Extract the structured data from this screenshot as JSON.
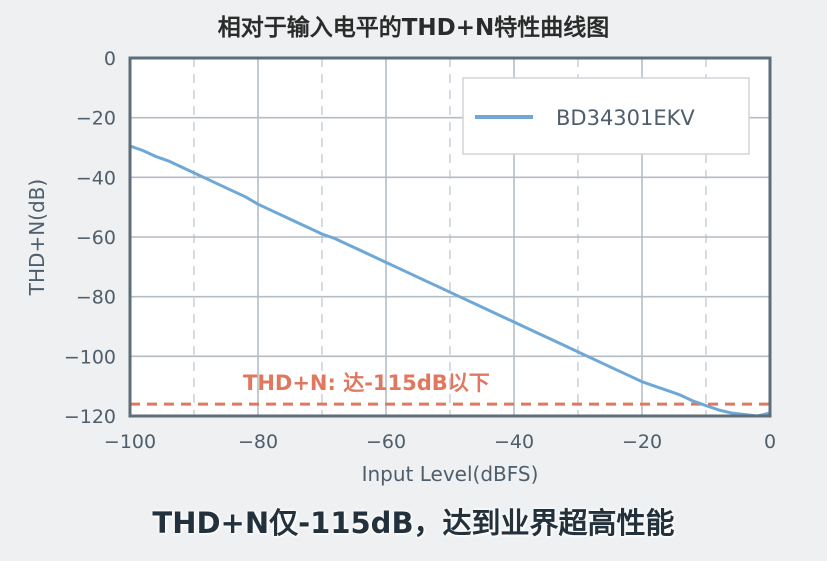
{
  "page": {
    "title": "相对于输入电平的THD+N特性曲线图",
    "footer": "THD+N仅-115dB，达到业界超高性能"
  },
  "chart_data": {
    "type": "line",
    "title": "相对于输入电平的THD+N特性曲线图",
    "xlabel": "Input Level(dBFS)",
    "ylabel": "THD+N(dB)",
    "xlim": [
      -100,
      0
    ],
    "ylim": [
      -120,
      0
    ],
    "xticks": [
      -100,
      -80,
      -60,
      -40,
      -20,
      0
    ],
    "xtick_labels": [
      "−100",
      "−80",
      "−60",
      "−40",
      "−20",
      "0"
    ],
    "yticks": [
      0,
      -20,
      -40,
      -60,
      -80,
      -100,
      -120
    ],
    "ytick_labels": [
      "0",
      "−20",
      "−40",
      "−60",
      "−80",
      "−100",
      "−120"
    ],
    "grid": true,
    "legend_position": "top-right",
    "series": [
      {
        "name": "BD34301EKV",
        "color": "#6fa8d6",
        "x": [
          -100,
          -98,
          -96,
          -94,
          -92,
          -90,
          -88,
          -86,
          -84,
          -82,
          -80,
          -78,
          -76,
          -74,
          -72,
          -70,
          -68,
          -66,
          -64,
          -62,
          -60,
          -58,
          -56,
          -54,
          -52,
          -50,
          -48,
          -46,
          -44,
          -42,
          -40,
          -38,
          -36,
          -34,
          -32,
          -30,
          -28,
          -26,
          -24,
          -22,
          -20,
          -18,
          -16,
          -14,
          -12,
          -10,
          -8,
          -6,
          -4,
          -2,
          0
        ],
        "y": [
          -29.5,
          -31,
          -33,
          -34.5,
          -36.5,
          -38.5,
          -40.5,
          -42.5,
          -44.5,
          -46.5,
          -49,
          -51,
          -53,
          -55,
          -57,
          -59,
          -60.5,
          -62.5,
          -64.5,
          -66.5,
          -68.5,
          -70.5,
          -72.5,
          -74.5,
          -76.5,
          -78.5,
          -80.5,
          -82.5,
          -84.5,
          -86.5,
          -88.5,
          -90.5,
          -92.5,
          -94.5,
          -96.5,
          -98.5,
          -100.5,
          -102.5,
          -104.5,
          -106.5,
          -108.5,
          -110,
          -111.5,
          -113,
          -115,
          -116.5,
          -118,
          -119,
          -119.5,
          -120,
          -119
        ]
      }
    ],
    "reference_line": {
      "y": -116,
      "color": "#e07860",
      "label": "THD+N: 达-115dB以下"
    }
  }
}
